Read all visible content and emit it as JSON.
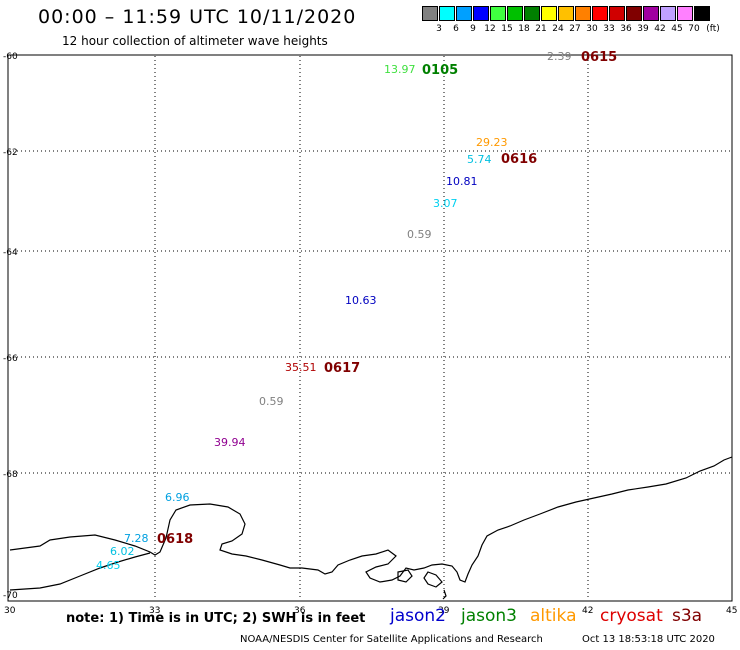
{
  "header": {
    "title": "00:00 – 11:59 UTC 10/11/2020",
    "subtitle": "12 hour collection of altimeter wave heights"
  },
  "legend": {
    "unit": "(ft)",
    "bins": [
      {
        "label": "3",
        "color": "#808080"
      },
      {
        "label": "6",
        "color": "#00ffff"
      },
      {
        "label": "9",
        "color": "#00a0ff"
      },
      {
        "label": "12",
        "color": "#0000ff"
      },
      {
        "label": "15",
        "color": "#40ff40"
      },
      {
        "label": "18",
        "color": "#00c000"
      },
      {
        "label": "21",
        "color": "#008000"
      },
      {
        "label": "24",
        "color": "#ffff00"
      },
      {
        "label": "27",
        "color": "#ffc000"
      },
      {
        "label": "30",
        "color": "#ff8000"
      },
      {
        "label": "33",
        "color": "#ff0000"
      },
      {
        "label": "36",
        "color": "#d00000"
      },
      {
        "label": "39",
        "color": "#800000"
      },
      {
        "label": "42",
        "color": "#a000a0"
      },
      {
        "label": "45",
        "color": "#c0a0ff"
      },
      {
        "label": "70",
        "color": "#ff80ff"
      },
      {
        "label": "",
        "color": "#000000"
      }
    ]
  },
  "axes": {
    "lat_ticks": [
      "-60",
      "-62",
      "-64",
      "-66",
      "-68",
      "-70"
    ],
    "lon_ticks": [
      "30",
      "33",
      "36",
      "39",
      "42",
      "45"
    ]
  },
  "observations": [
    {
      "text": "13.97",
      "color": "#40e040"
    },
    {
      "text": "2.39",
      "color": "#808080"
    },
    {
      "text": "29.23",
      "color": "#ff9900"
    },
    {
      "text": "5.74",
      "color": "#00c0e0"
    },
    {
      "text": "10.81",
      "color": "#0000c0"
    },
    {
      "text": "3.07",
      "color": "#00d0f0"
    },
    {
      "text": "0.59",
      "color": "#808080"
    },
    {
      "text": "10.63",
      "color": "#0000c0"
    },
    {
      "text": "35.51",
      "color": "#b00000"
    },
    {
      "text": "0.59",
      "color": "#808080"
    },
    {
      "text": "39.94",
      "color": "#900090"
    },
    {
      "text": "6.96",
      "color": "#00a0e0"
    },
    {
      "text": "7.28",
      "color": "#00a0e0"
    },
    {
      "text": "6.02",
      "color": "#00c0e0"
    },
    {
      "text": "4.65",
      "color": "#00d0f0"
    }
  ],
  "passes": [
    {
      "text": "0105",
      "color": "#008000"
    },
    {
      "text": "0615",
      "color": "#800000"
    },
    {
      "text": "0616",
      "color": "#800000"
    },
    {
      "text": "0617",
      "color": "#800000"
    },
    {
      "text": "0618",
      "color": "#800000"
    }
  ],
  "footer": {
    "note": "note:  1) Time is in UTC;  2) SWH is in feet",
    "satellites": [
      {
        "name": "jason2",
        "color": "#0000cc"
      },
      {
        "name": "jason3",
        "color": "#008000"
      },
      {
        "name": "altika",
        "color": "#ff9900"
      },
      {
        "name": "cryosat",
        "color": "#dd0000"
      },
      {
        "name": "s3a",
        "color": "#800000"
      }
    ],
    "credit": "NOAA/NESDIS Center for Satellite Applications and Research",
    "timestamp": "Oct 13 18:53:18 UTC 2020"
  }
}
